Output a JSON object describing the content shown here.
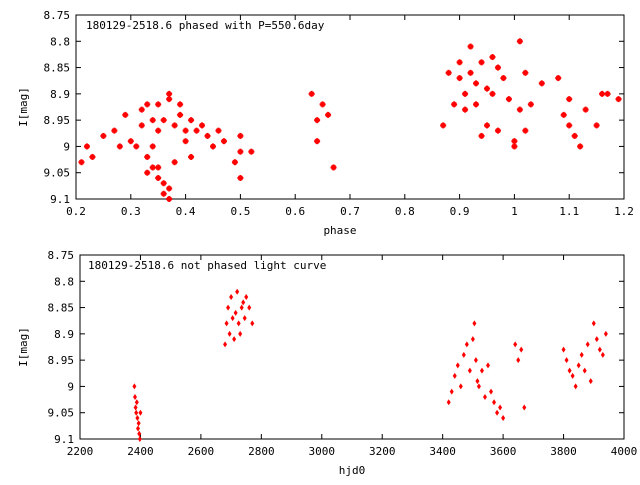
{
  "chart_data": [
    {
      "type": "scatter",
      "title": "180129-2518.6 phased with P=550.6day",
      "xlabel": "phase",
      "ylabel": "I[mag]",
      "xlim": [
        0.2,
        1.2
      ],
      "ylim": [
        8.75,
        9.1
      ],
      "y_inverted": true,
      "x_ticks": [
        "0.2",
        "0.3",
        "0.4",
        "0.5",
        "0.6",
        "0.7",
        "0.8",
        "0.9",
        "1",
        "1.1",
        "1.2"
      ],
      "y_ticks": [
        "8.75",
        "8.8",
        "8.85",
        "8.9",
        "8.95",
        "9",
        "9.05",
        "9.1"
      ],
      "grid": false,
      "color": "#ff0000",
      "marker": "plus-cross",
      "x": [
        0.21,
        0.22,
        0.23,
        0.25,
        0.27,
        0.28,
        0.29,
        0.3,
        0.31,
        0.32,
        0.32,
        0.33,
        0.33,
        0.33,
        0.34,
        0.34,
        0.34,
        0.35,
        0.35,
        0.35,
        0.35,
        0.36,
        0.36,
        0.36,
        0.37,
        0.37,
        0.37,
        0.37,
        0.38,
        0.38,
        0.39,
        0.39,
        0.4,
        0.4,
        0.41,
        0.41,
        0.42,
        0.43,
        0.44,
        0.45,
        0.46,
        0.47,
        0.49,
        0.5,
        0.5,
        0.5,
        0.52,
        0.63,
        0.64,
        0.64,
        0.65,
        0.66,
        0.67,
        0.87,
        0.88,
        0.89,
        0.9,
        0.9,
        0.91,
        0.91,
        0.92,
        0.92,
        0.93,
        0.93,
        0.94,
        0.94,
        0.95,
        0.95,
        0.96,
        0.96,
        0.97,
        0.97,
        0.98,
        0.99,
        1.0,
        1.0,
        1.01,
        1.01,
        1.02,
        1.02,
        1.03,
        1.05,
        1.08,
        1.09,
        1.1,
        1.1,
        1.11,
        1.12,
        1.13,
        1.15,
        1.16,
        1.17,
        1.19
      ],
      "y": [
        9.03,
        9.0,
        9.02,
        8.98,
        8.97,
        9.0,
        8.94,
        8.99,
        9.0,
        8.93,
        8.96,
        8.92,
        9.02,
        9.05,
        8.95,
        9.04,
        9.0,
        8.97,
        9.04,
        8.92,
        9.06,
        9.07,
        8.95,
        9.09,
        9.08,
        8.91,
        9.1,
        8.9,
        8.96,
        9.03,
        8.94,
        8.92,
        8.97,
        8.99,
        8.95,
        9.02,
        8.97,
        8.96,
        8.98,
        9.0,
        8.97,
        8.99,
        9.03,
        9.06,
        9.01,
        8.98,
        9.01,
        8.9,
        8.99,
        8.95,
        8.92,
        8.94,
        9.04,
        8.96,
        8.86,
        8.92,
        8.87,
        8.84,
        8.93,
        8.9,
        8.86,
        8.81,
        8.92,
        8.88,
        8.98,
        8.84,
        8.89,
        8.96,
        8.83,
        8.9,
        8.85,
        8.97,
        8.87,
        8.91,
        8.99,
        9.0,
        8.93,
        8.8,
        8.97,
        8.86,
        8.92,
        8.88,
        8.87,
        8.94,
        8.96,
        8.91,
        8.98,
        9.0,
        8.93,
        8.96,
        8.9,
        8.9,
        8.91
      ]
    },
    {
      "type": "scatter",
      "title": "180129-2518.6 not phased light curve",
      "xlabel": "hjd0",
      "ylabel": "I[mag]",
      "xlim": [
        2200,
        4000
      ],
      "ylim": [
        8.75,
        9.1
      ],
      "y_inverted": true,
      "x_ticks": [
        "2200",
        "2400",
        "2600",
        "2800",
        "3000",
        "3200",
        "3400",
        "3600",
        "3800",
        "4000"
      ],
      "y_ticks": [
        "8.75",
        "8.8",
        "8.85",
        "8.9",
        "8.95",
        "9",
        "9.05",
        "9.1"
      ],
      "grid": false,
      "color": "#ff0000",
      "marker": "diamond",
      "x": [
        2380,
        2382,
        2384,
        2386,
        2388,
        2390,
        2392,
        2394,
        2396,
        2398,
        2400,
        2680,
        2685,
        2690,
        2695,
        2700,
        2705,
        2710,
        2715,
        2720,
        2725,
        2730,
        2735,
        2740,
        2745,
        2750,
        2760,
        2770,
        3420,
        3430,
        3440,
        3450,
        3460,
        3470,
        3480,
        3490,
        3500,
        3505,
        3510,
        3515,
        3520,
        3530,
        3540,
        3550,
        3560,
        3570,
        3580,
        3590,
        3600,
        3640,
        3650,
        3660,
        3670,
        3800,
        3810,
        3820,
        3830,
        3840,
        3850,
        3860,
        3870,
        3880,
        3890,
        3900,
        3910,
        3920,
        3930,
        3940
      ],
      "y": [
        9.0,
        9.02,
        9.04,
        9.05,
        9.03,
        9.06,
        9.08,
        9.07,
        9.09,
        9.1,
        9.05,
        8.92,
        8.88,
        8.85,
        8.9,
        8.83,
        8.87,
        8.91,
        8.86,
        8.82,
        8.88,
        8.9,
        8.85,
        8.84,
        8.87,
        8.83,
        8.85,
        8.88,
        9.03,
        9.01,
        8.98,
        8.96,
        9.0,
        8.94,
        8.92,
        8.97,
        8.91,
        8.88,
        8.95,
        8.99,
        9.0,
        8.97,
        9.02,
        8.96,
        9.01,
        9.03,
        9.05,
        9.04,
        9.06,
        8.92,
        8.95,
        8.93,
        9.04,
        8.93,
        8.95,
        8.97,
        8.98,
        9.0,
        8.96,
        8.94,
        8.97,
        8.92,
        8.99,
        8.88,
        8.91,
        8.93,
        8.94,
        8.9
      ]
    }
  ]
}
